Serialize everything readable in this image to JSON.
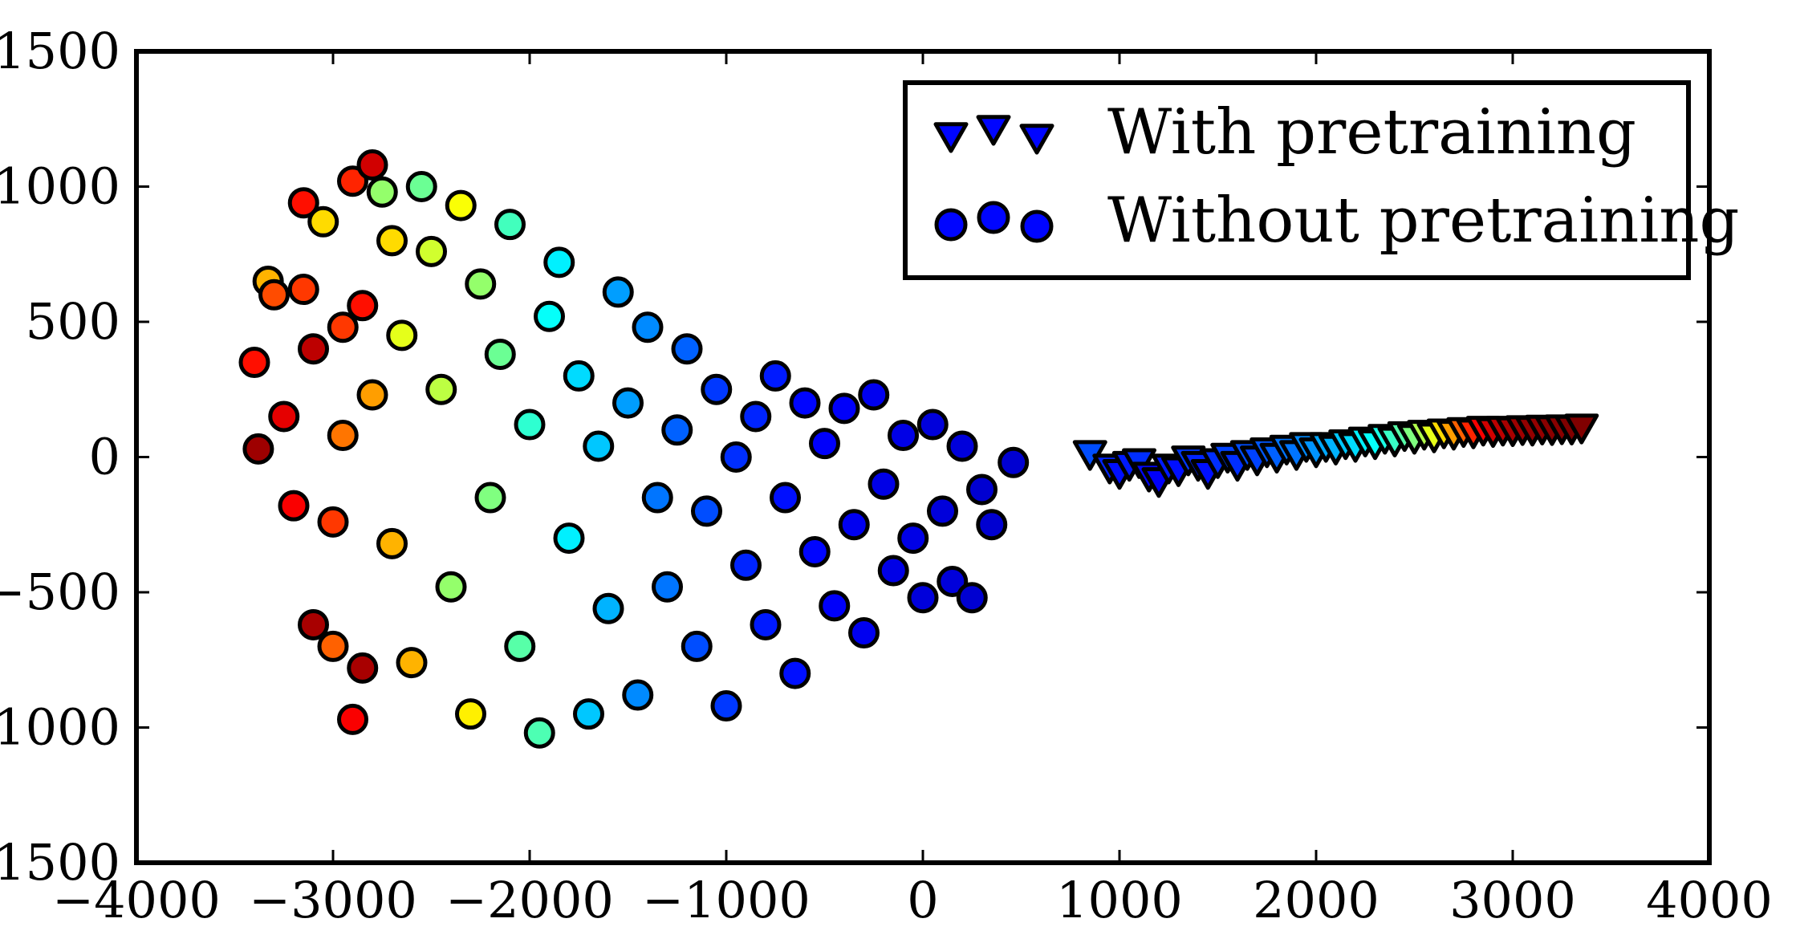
{
  "chart_data": {
    "type": "scatter",
    "title": "",
    "xlabel": "",
    "ylabel": "",
    "xlim": [
      -4000,
      4000
    ],
    "ylim": [
      -1500,
      1500
    ],
    "xticks": [
      -4000,
      -3000,
      -2000,
      -1000,
      0,
      1000,
      2000,
      3000,
      4000
    ],
    "yticks": [
      -1500,
      -1000,
      -500,
      0,
      500,
      1000,
      1500
    ],
    "xtick_labels": [
      "−4000",
      "−3000",
      "−2000",
      "−1000",
      "0",
      "1000",
      "2000",
      "3000",
      "4000"
    ],
    "ytick_labels": [
      "−1500",
      "−1000",
      "−500",
      "0",
      "500",
      "1000",
      "1500"
    ],
    "grid": false,
    "colormap": "jet",
    "legend": {
      "placement": "top-right",
      "entries": [
        "With pretraining",
        "Without pretraining"
      ]
    },
    "series": [
      {
        "name": "With pretraining",
        "marker": "triangle-down",
        "points": [
          [
            850,
            10,
            0.2
          ],
          [
            950,
            -40,
            0.16
          ],
          [
            1000,
            -60,
            0.14
          ],
          [
            1050,
            -30,
            0.15
          ],
          [
            1100,
            -20,
            0.17
          ],
          [
            1150,
            -70,
            0.13
          ],
          [
            1200,
            -90,
            0.12
          ],
          [
            1250,
            -40,
            0.15
          ],
          [
            1300,
            -50,
            0.14
          ],
          [
            1350,
            -10,
            0.18
          ],
          [
            1400,
            -30,
            0.16
          ],
          [
            1450,
            -60,
            0.14
          ],
          [
            1500,
            -20,
            0.17
          ],
          [
            1550,
            0,
            0.19
          ],
          [
            1600,
            -30,
            0.17
          ],
          [
            1650,
            10,
            0.2
          ],
          [
            1700,
            -10,
            0.19
          ],
          [
            1750,
            20,
            0.21
          ],
          [
            1800,
            0,
            0.22
          ],
          [
            1850,
            30,
            0.24
          ],
          [
            1900,
            10,
            0.24
          ],
          [
            1950,
            40,
            0.26
          ],
          [
            2000,
            20,
            0.27
          ],
          [
            2050,
            40,
            0.29
          ],
          [
            2100,
            30,
            0.3
          ],
          [
            2150,
            50,
            0.32
          ],
          [
            2200,
            40,
            0.34
          ],
          [
            2250,
            60,
            0.36
          ],
          [
            2300,
            50,
            0.38
          ],
          [
            2350,
            70,
            0.4
          ],
          [
            2400,
            60,
            0.43
          ],
          [
            2450,
            80,
            0.46
          ],
          [
            2500,
            70,
            0.5
          ],
          [
            2550,
            85,
            0.55
          ],
          [
            2600,
            75,
            0.6
          ],
          [
            2650,
            90,
            0.66
          ],
          [
            2700,
            85,
            0.72
          ],
          [
            2750,
            95,
            0.78
          ],
          [
            2800,
            90,
            0.84
          ],
          [
            2850,
            100,
            0.88
          ],
          [
            2900,
            95,
            0.92
          ],
          [
            2950,
            100,
            0.94
          ],
          [
            3000,
            98,
            0.96
          ],
          [
            3050,
            102,
            0.97
          ],
          [
            3100,
            100,
            0.98
          ],
          [
            3150,
            104,
            0.98
          ],
          [
            3200,
            102,
            0.99
          ],
          [
            3250,
            105,
            0.99
          ],
          [
            3300,
            104,
            1.0
          ],
          [
            3350,
            108,
            1.0
          ]
        ]
      },
      {
        "name": "Without pretraining",
        "marker": "circle",
        "points": [
          [
            -3380,
            30,
            0.97
          ],
          [
            -3400,
            350,
            0.86
          ],
          [
            -3330,
            650,
            0.7
          ],
          [
            -3300,
            600,
            0.8
          ],
          [
            -3250,
            150,
            0.9
          ],
          [
            -3200,
            -180,
            0.88
          ],
          [
            -3150,
            940,
            0.86
          ],
          [
            -3150,
            620,
            0.82
          ],
          [
            -3100,
            -620,
            0.96
          ],
          [
            -3100,
            400,
            0.94
          ],
          [
            -3050,
            870,
            0.66
          ],
          [
            -3000,
            -240,
            0.82
          ],
          [
            -3000,
            -700,
            0.78
          ],
          [
            -2950,
            480,
            0.82
          ],
          [
            -2950,
            80,
            0.76
          ],
          [
            -2900,
            1020,
            0.84
          ],
          [
            -2900,
            -970,
            0.88
          ],
          [
            -2850,
            -780,
            0.96
          ],
          [
            -2850,
            560,
            0.86
          ],
          [
            -2800,
            1080,
            0.92
          ],
          [
            -2800,
            230,
            0.72
          ],
          [
            -2750,
            980,
            0.52
          ],
          [
            -2700,
            800,
            0.66
          ],
          [
            -2700,
            -320,
            0.7
          ],
          [
            -2650,
            450,
            0.6
          ],
          [
            -2600,
            -760,
            0.7
          ],
          [
            -2550,
            1000,
            0.48
          ],
          [
            -2500,
            760,
            0.58
          ],
          [
            -2450,
            250,
            0.56
          ],
          [
            -2400,
            -480,
            0.52
          ],
          [
            -2350,
            930,
            0.62
          ],
          [
            -2300,
            -950,
            0.64
          ],
          [
            -2250,
            640,
            0.52
          ],
          [
            -2200,
            -150,
            0.5
          ],
          [
            -2150,
            380,
            0.48
          ],
          [
            -2100,
            860,
            0.44
          ],
          [
            -2050,
            -700,
            0.46
          ],
          [
            -2000,
            120,
            0.42
          ],
          [
            -1950,
            -1020,
            0.45
          ],
          [
            -1900,
            520,
            0.38
          ],
          [
            -1850,
            720,
            0.36
          ],
          [
            -1800,
            -300,
            0.36
          ],
          [
            -1750,
            300,
            0.34
          ],
          [
            -1700,
            -950,
            0.32
          ],
          [
            -1650,
            40,
            0.32
          ],
          [
            -1600,
            -560,
            0.3
          ],
          [
            -1550,
            610,
            0.28
          ],
          [
            -1500,
            200,
            0.28
          ],
          [
            -1450,
            -880,
            0.26
          ],
          [
            -1400,
            480,
            0.26
          ],
          [
            -1350,
            -150,
            0.24
          ],
          [
            -1300,
            -480,
            0.24
          ],
          [
            -1250,
            100,
            0.22
          ],
          [
            -1200,
            400,
            0.22
          ],
          [
            -1150,
            -700,
            0.2
          ],
          [
            -1100,
            -200,
            0.2
          ],
          [
            -1050,
            250,
            0.18
          ],
          [
            -1000,
            -920,
            0.18
          ],
          [
            -950,
            0,
            0.17
          ],
          [
            -900,
            -400,
            0.16
          ],
          [
            -850,
            150,
            0.16
          ],
          [
            -800,
            -620,
            0.15
          ],
          [
            -750,
            300,
            0.15
          ],
          [
            -700,
            -150,
            0.14
          ],
          [
            -650,
            -800,
            0.14
          ],
          [
            -600,
            200,
            0.13
          ],
          [
            -550,
            -350,
            0.13
          ],
          [
            -500,
            50,
            0.12
          ],
          [
            -450,
            -550,
            0.12
          ],
          [
            -400,
            180,
            0.12
          ],
          [
            -350,
            -250,
            0.11
          ],
          [
            -300,
            -650,
            0.11
          ],
          [
            -250,
            230,
            0.11
          ],
          [
            -200,
            -100,
            0.1
          ],
          [
            -150,
            -420,
            0.1
          ],
          [
            -100,
            80,
            0.1
          ],
          [
            -50,
            -300,
            0.1
          ],
          [
            0,
            -520,
            0.09
          ],
          [
            50,
            120,
            0.09
          ],
          [
            100,
            -200,
            0.09
          ],
          [
            150,
            -460,
            0.09
          ],
          [
            200,
            40,
            0.09
          ],
          [
            250,
            -520,
            0.08
          ],
          [
            300,
            -120,
            0.08
          ],
          [
            350,
            -250,
            0.08
          ],
          [
            460,
            -20,
            0.08
          ]
        ]
      }
    ]
  }
}
